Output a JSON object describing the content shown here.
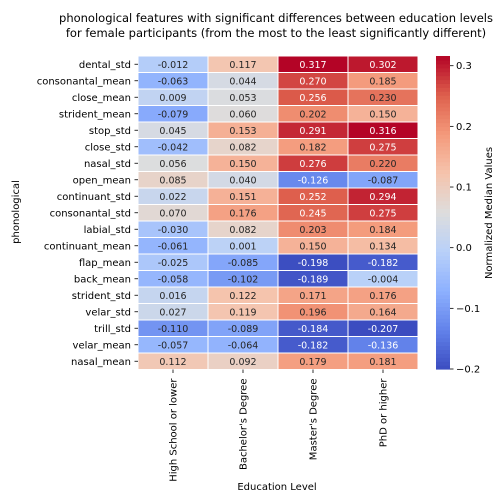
{
  "chart_data": {
    "type": "heatmap",
    "title_lines": [
      "phonological features with significant differences between education levels",
      "for female participants (from the most to the least significantly different)"
    ],
    "xlabel": "Education Level",
    "ylabel": "phonological",
    "colorbar_label": "Normalized Median Values",
    "colormap": "coolwarm",
    "vmin": -0.2,
    "vmax": 0.316,
    "colorbar_ticks": [
      "-0.2",
      "-0.1",
      "0.0",
      "0.1",
      "0.2",
      "0.3"
    ],
    "columns": [
      "High School or lower",
      "Bachelor's Degree",
      "Master's Degree",
      "PhD or higher"
    ],
    "rows": [
      "dental_std",
      "consonantal_mean",
      "close_mean",
      "strident_mean",
      "stop_std",
      "close_std",
      "nasal_std",
      "open_mean",
      "continuant_std",
      "consonantal_std",
      "labial_std",
      "continuant_mean",
      "flap_mean",
      "back_mean",
      "strident_std",
      "velar_std",
      "trill_std",
      "velar_mean",
      "nasal_mean"
    ],
    "values": [
      [
        -0.012,
        0.117,
        0.317,
        0.302
      ],
      [
        -0.063,
        0.044,
        0.27,
        0.185
      ],
      [
        0.009,
        0.053,
        0.256,
        0.23
      ],
      [
        -0.079,
        0.06,
        0.202,
        0.15
      ],
      [
        0.045,
        0.153,
        0.291,
        0.316
      ],
      [
        -0.042,
        0.082,
        0.182,
        0.275
      ],
      [
        0.056,
        0.15,
        0.276,
        0.22
      ],
      [
        0.085,
        0.04,
        -0.126,
        -0.087
      ],
      [
        0.022,
        0.151,
        0.252,
        0.294
      ],
      [
        0.07,
        0.176,
        0.245,
        0.275
      ],
      [
        -0.03,
        0.082,
        0.203,
        0.184
      ],
      [
        -0.061,
        0.001,
        0.15,
        0.134
      ],
      [
        -0.025,
        -0.085,
        -0.198,
        -0.182
      ],
      [
        -0.058,
        -0.102,
        -0.189,
        -0.004
      ],
      [
        0.016,
        0.122,
        0.171,
        0.176
      ],
      [
        0.027,
        0.119,
        0.196,
        0.164
      ],
      [
        -0.11,
        -0.089,
        -0.184,
        -0.207
      ],
      [
        -0.057,
        -0.064,
        -0.182,
        -0.136
      ],
      [
        0.112,
        0.092,
        0.179,
        0.181
      ]
    ]
  }
}
